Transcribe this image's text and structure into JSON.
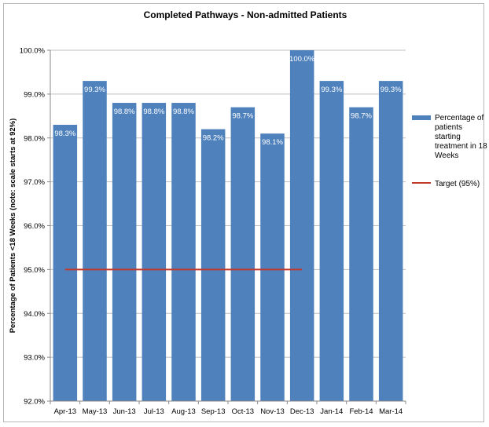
{
  "chart_data": {
    "type": "bar",
    "title": "Completed Pathways - Non-admitted Patients",
    "ylabel": "Percentage of Patients <18 Weeks (note: scale starts at 92%)",
    "xlabel": "",
    "categories": [
      "Apr-13",
      "May-13",
      "Jun-13",
      "Jul-13",
      "Aug-13",
      "Sep-13",
      "Oct-13",
      "Nov-13",
      "Dec-13",
      "Jan-14",
      "Feb-14",
      "Mar-14"
    ],
    "series": [
      {
        "name": "Percentage of patients starting treatment in 18 Weeks",
        "values": [
          98.3,
          99.3,
          98.8,
          98.8,
          98.8,
          98.2,
          98.7,
          98.1,
          100.0,
          99.3,
          98.7,
          99.3
        ],
        "labels": [
          "98.3%",
          "99.3%",
          "98.8%",
          "98.8%",
          "98.8%",
          "98.2%",
          "98.7%",
          "98.1%",
          "100.0%",
          "99.3%",
          "98.7%",
          "99.3%"
        ],
        "color": "#4f81bd"
      }
    ],
    "target": {
      "name": "Target (95%)",
      "value": 95.0,
      "color": "#c0392b",
      "from_category": "Apr-13",
      "to_category": "Dec-13"
    },
    "ylim": [
      92.0,
      100.0
    ],
    "yticks": [
      92.0,
      93.0,
      94.0,
      95.0,
      96.0,
      97.0,
      98.0,
      99.0,
      100.0
    ],
    "ytick_labels": [
      "92.0%",
      "93.0%",
      "94.0%",
      "95.0%",
      "96.0%",
      "97.0%",
      "98.0%",
      "99.0%",
      "100.0%"
    ],
    "grid": true,
    "legend_position": "right"
  }
}
